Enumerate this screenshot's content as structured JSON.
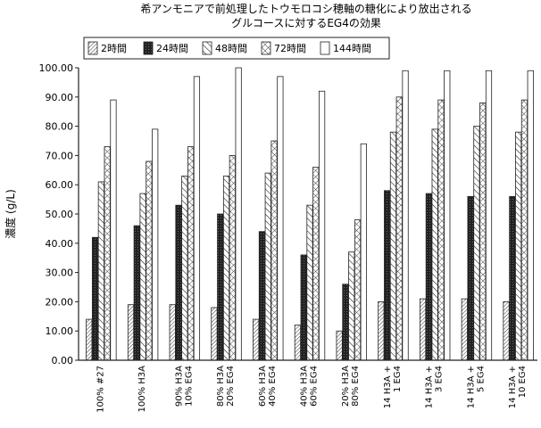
{
  "chart_data": {
    "type": "bar",
    "title_lines": [
      "希アンモニアで前処理したトウモロコシ穂軸の糖化により放出される",
      "グルコースに対するEG4の効果"
    ],
    "xlabel": "",
    "ylabel": "濃度 (g/L)",
    "ylim": [
      0,
      100
    ],
    "yticks": [
      "0.00",
      "10.00",
      "20.00",
      "30.00",
      "40.00",
      "50.00",
      "60.00",
      "70.00",
      "80.00",
      "90.00",
      "100.00"
    ],
    "categories": [
      [
        "100% #27"
      ],
      [
        "100% H3A"
      ],
      [
        "90% H3A",
        "10% EG4"
      ],
      [
        "80% H3A",
        "20% EG4"
      ],
      [
        "60% H3A",
        "40% EG4"
      ],
      [
        "40% H3A",
        "60% EG4"
      ],
      [
        "20% H3A",
        "80% EG4"
      ],
      [
        "14 H3A +",
        "1 EG4"
      ],
      [
        "14 H3A +",
        "3 EG4"
      ],
      [
        "14 H3A +",
        "5 EG4"
      ],
      [
        "14 H3A +",
        "10 EG4"
      ]
    ],
    "series": [
      {
        "name": "2時間",
        "pattern": "fine-hatch",
        "values": [
          14,
          19,
          19,
          18,
          14,
          12,
          10,
          20,
          21,
          21,
          20
        ]
      },
      {
        "name": "24時間",
        "pattern": "dark",
        "values": [
          42,
          46,
          53,
          50,
          44,
          36,
          26,
          58,
          57,
          56,
          56
        ]
      },
      {
        "name": "48時間",
        "pattern": "diag-hatch",
        "values": [
          61,
          57,
          63,
          63,
          64,
          53,
          37,
          78,
          79,
          80,
          78
        ]
      },
      {
        "name": "72時間",
        "pattern": "cross-hatch",
        "values": [
          73,
          68,
          73,
          70,
          75,
          66,
          48,
          90,
          89,
          88,
          89
        ]
      },
      {
        "name": "144時間",
        "pattern": "white",
        "values": [
          89,
          79,
          97,
          100,
          97,
          92,
          74,
          99,
          99,
          99,
          99
        ]
      }
    ],
    "legend_position": "top",
    "grid": false
  }
}
